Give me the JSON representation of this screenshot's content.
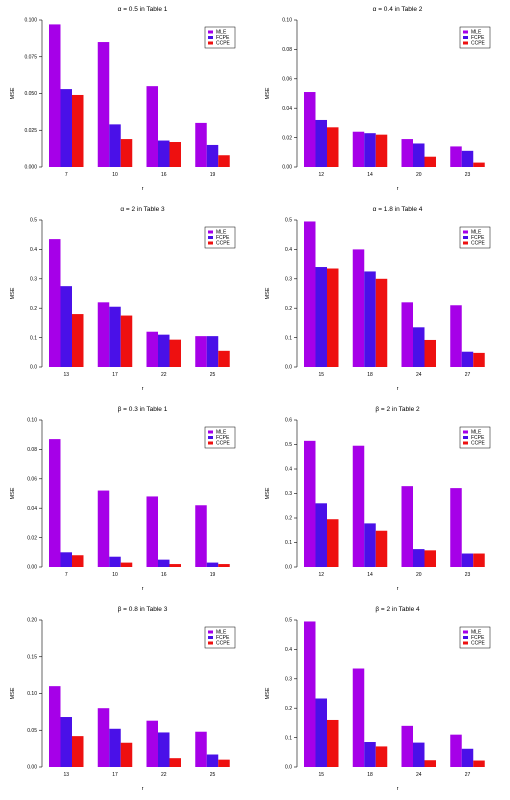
{
  "colors": {
    "MLE": "#a600e8",
    "FCPE": "#4a10e8",
    "CCPE": "#ee1010"
  },
  "chart_data": [
    {
      "type": "bar",
      "title": "α = 0.5 in Table 1",
      "xlabel": "r",
      "ylabel": "MSE",
      "ylim": [
        0,
        0.1
      ],
      "yticks": [
        "0.000",
        "0.025",
        "0.050",
        "0.075",
        "0.100"
      ],
      "ytick_values": [
        0,
        0.025,
        0.05,
        0.075,
        0.1
      ],
      "categories": [
        "7",
        "10",
        "16",
        "19"
      ],
      "legend_position": "top-right",
      "series": [
        {
          "name": "MLE",
          "values": [
            0.097,
            0.085,
            0.055,
            0.03
          ]
        },
        {
          "name": "FCPE",
          "values": [
            0.053,
            0.029,
            0.018,
            0.015
          ]
        },
        {
          "name": "CCPE",
          "values": [
            0.049,
            0.019,
            0.017,
            0.008
          ]
        }
      ]
    },
    {
      "type": "bar",
      "title": "α = 0.4 in Table 2",
      "xlabel": "r",
      "ylabel": "MSE",
      "ylim": [
        0,
        0.1
      ],
      "yticks": [
        "0.00",
        "0.02",
        "0.04",
        "0.06",
        "0.08",
        "0.10"
      ],
      "ytick_values": [
        0,
        0.02,
        0.04,
        0.06,
        0.08,
        0.1
      ],
      "categories": [
        "12",
        "14",
        "20",
        "23"
      ],
      "legend_position": "top-right",
      "series": [
        {
          "name": "MLE",
          "values": [
            0.051,
            0.024,
            0.019,
            0.014
          ]
        },
        {
          "name": "FCPE",
          "values": [
            0.032,
            0.023,
            0.016,
            0.011
          ]
        },
        {
          "name": "CCPE",
          "values": [
            0.027,
            0.022,
            0.007,
            0.003
          ]
        }
      ]
    },
    {
      "type": "bar",
      "title": "α = 2 in Table 3",
      "xlabel": "r",
      "ylabel": "MSE",
      "ylim": [
        0,
        0.5
      ],
      "yticks": [
        "0.0",
        "0.1",
        "0.2",
        "0.3",
        "0.4",
        "0.5"
      ],
      "ytick_values": [
        0,
        0.1,
        0.2,
        0.3,
        0.4,
        0.5
      ],
      "categories": [
        "13",
        "17",
        "22",
        "25"
      ],
      "legend_position": "top-right",
      "series": [
        {
          "name": "MLE",
          "values": [
            0.435,
            0.22,
            0.12,
            0.105
          ]
        },
        {
          "name": "FCPE",
          "values": [
            0.275,
            0.205,
            0.11,
            0.105
          ]
        },
        {
          "name": "CCPE",
          "values": [
            0.18,
            0.175,
            0.093,
            0.055
          ]
        }
      ]
    },
    {
      "type": "bar",
      "title": "α = 1.8 in Table 4",
      "xlabel": "r",
      "ylabel": "MSE",
      "ylim": [
        0,
        0.5
      ],
      "yticks": [
        "0.0",
        "0.1",
        "0.2",
        "0.3",
        "0.4",
        "0.5"
      ],
      "ytick_values": [
        0,
        0.1,
        0.2,
        0.3,
        0.4,
        0.5
      ],
      "categories": [
        "15",
        "18",
        "24",
        "27"
      ],
      "legend_position": "top-right",
      "series": [
        {
          "name": "MLE",
          "values": [
            0.495,
            0.4,
            0.22,
            0.21
          ]
        },
        {
          "name": "FCPE",
          "values": [
            0.34,
            0.325,
            0.135,
            0.052
          ]
        },
        {
          "name": "CCPE",
          "values": [
            0.335,
            0.3,
            0.092,
            0.048
          ]
        }
      ]
    },
    {
      "type": "bar",
      "title": "β = 0.3 in Table 1",
      "xlabel": "r",
      "ylabel": "MSE",
      "ylim": [
        0,
        0.1
      ],
      "yticks": [
        "0.00",
        "0.02",
        "0.04",
        "0.06",
        "0.08",
        "0.10"
      ],
      "ytick_values": [
        0,
        0.02,
        0.04,
        0.06,
        0.08,
        0.1
      ],
      "categories": [
        "7",
        "10",
        "16",
        "19"
      ],
      "legend_position": "top-right",
      "series": [
        {
          "name": "MLE",
          "values": [
            0.087,
            0.052,
            0.048,
            0.042
          ]
        },
        {
          "name": "FCPE",
          "values": [
            0.01,
            0.007,
            0.005,
            0.003
          ]
        },
        {
          "name": "CCPE",
          "values": [
            0.008,
            0.003,
            0.002,
            0.002
          ]
        }
      ]
    },
    {
      "type": "bar",
      "title": "β = 2 in Table 2",
      "xlabel": "r",
      "ylabel": "MSE",
      "ylim": [
        0,
        0.6
      ],
      "yticks": [
        "0.0",
        "0.1",
        "0.2",
        "0.3",
        "0.4",
        "0.5",
        "0.6"
      ],
      "ytick_values": [
        0,
        0.1,
        0.2,
        0.3,
        0.4,
        0.5,
        0.6
      ],
      "categories": [
        "12",
        "14",
        "20",
        "23"
      ],
      "legend_position": "top-right",
      "series": [
        {
          "name": "MLE",
          "values": [
            0.515,
            0.495,
            0.33,
            0.322
          ]
        },
        {
          "name": "FCPE",
          "values": [
            0.26,
            0.178,
            0.073,
            0.055
          ]
        },
        {
          "name": "CCPE",
          "values": [
            0.195,
            0.148,
            0.068,
            0.055
          ]
        }
      ]
    },
    {
      "type": "bar",
      "title": "β = 0.8 in Table 3",
      "xlabel": "r",
      "ylabel": "MSE",
      "ylim": [
        0,
        0.2
      ],
      "yticks": [
        "0.00",
        "0.05",
        "0.10",
        "0.15",
        "0.20"
      ],
      "ytick_values": [
        0,
        0.05,
        0.1,
        0.15,
        0.2
      ],
      "categories": [
        "13",
        "17",
        "22",
        "25"
      ],
      "legend_position": "top-right",
      "series": [
        {
          "name": "MLE",
          "values": [
            0.11,
            0.08,
            0.063,
            0.048
          ]
        },
        {
          "name": "FCPE",
          "values": [
            0.068,
            0.052,
            0.047,
            0.017
          ]
        },
        {
          "name": "CCPE",
          "values": [
            0.042,
            0.033,
            0.012,
            0.01
          ]
        }
      ]
    },
    {
      "type": "bar",
      "title": "β = 2 in Table 4",
      "xlabel": "r",
      "ylabel": "MSE",
      "ylim": [
        0,
        0.5
      ],
      "yticks": [
        "0.0",
        "0.1",
        "0.2",
        "0.3",
        "0.4",
        "0.5"
      ],
      "ytick_values": [
        0,
        0.1,
        0.2,
        0.3,
        0.4,
        0.5
      ],
      "categories": [
        "15",
        "18",
        "24",
        "27"
      ],
      "legend_position": "top-right",
      "series": [
        {
          "name": "MLE",
          "values": [
            0.495,
            0.335,
            0.14,
            0.11
          ]
        },
        {
          "name": "FCPE",
          "values": [
            0.233,
            0.085,
            0.083,
            0.062
          ]
        },
        {
          "name": "CCPE",
          "values": [
            0.16,
            0.07,
            0.023,
            0.022
          ]
        }
      ]
    }
  ]
}
